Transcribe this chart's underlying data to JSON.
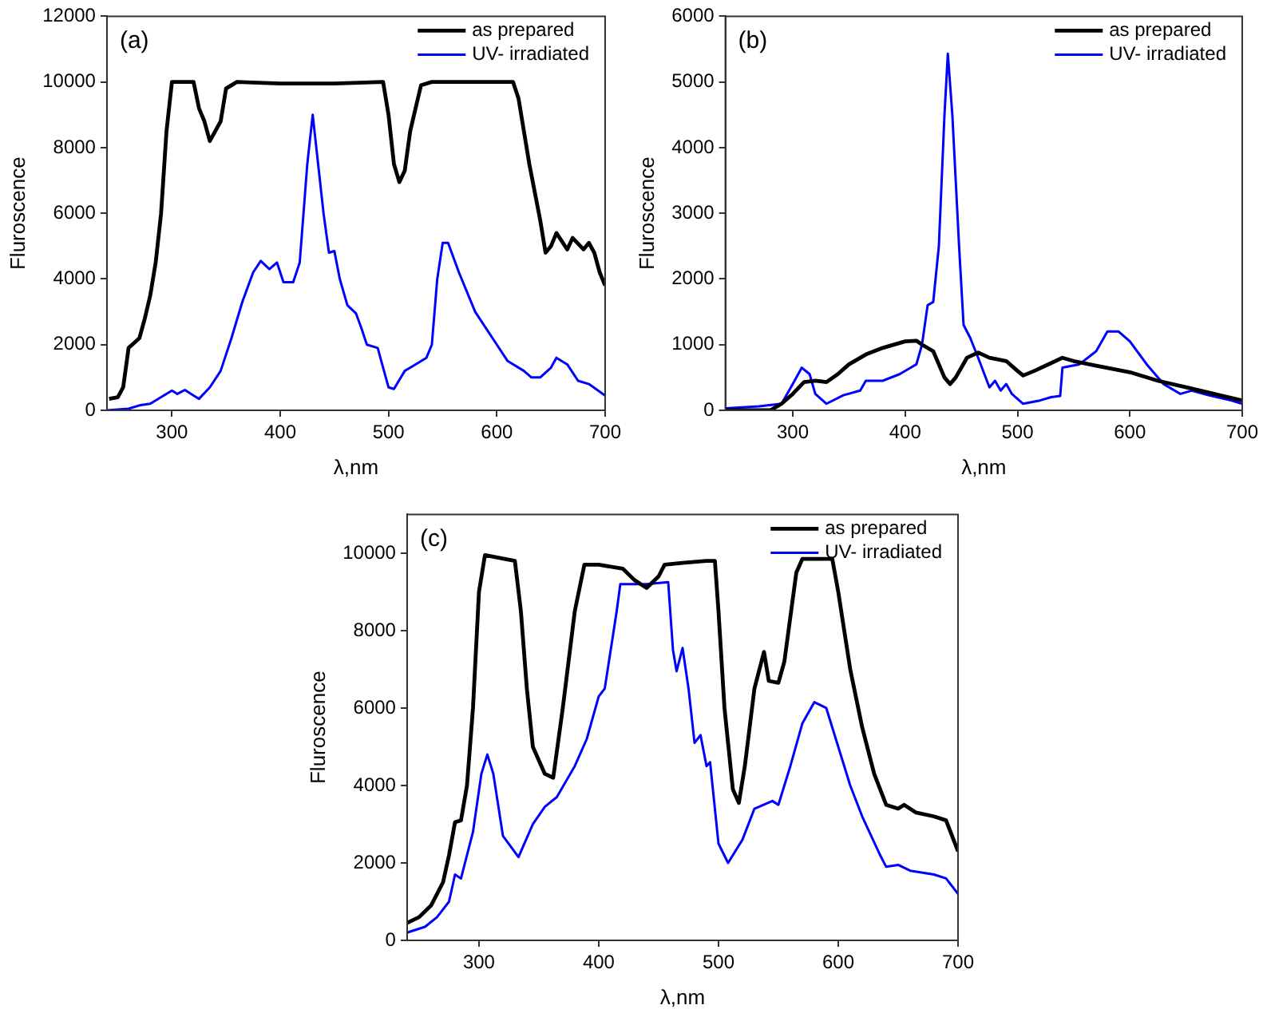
{
  "chart_data": [
    {
      "type": "line",
      "xlabel": "λ,nm",
      "ylabel": "Fluroscence",
      "annotations": [
        "(a)"
      ],
      "xlim": [
        240,
        700
      ],
      "xticks": [
        300,
        400,
        500,
        600,
        700
      ],
      "ylim": [
        0,
        12000
      ],
      "yticks": [
        0,
        2000,
        4000,
        6000,
        8000,
        10000,
        12000
      ],
      "legend": "top right",
      "grid": false,
      "marker": "none",
      "line_style": "solid",
      "series": [
        {
          "name": "as prepared",
          "color": "#000000",
          "x": [
            242,
            250,
            255,
            260,
            265,
            270,
            275,
            280,
            285,
            290,
            295,
            300,
            320,
            325,
            330,
            335,
            340,
            345,
            350,
            360,
            400,
            450,
            495,
            500,
            505,
            510,
            515,
            520,
            525,
            530,
            540,
            600,
            615,
            620,
            625,
            630,
            640,
            645,
            650,
            655,
            665,
            670,
            680,
            685,
            690,
            695,
            700
          ],
          "values": [
            350,
            400,
            700,
            1900,
            2050,
            2200,
            2800,
            3500,
            4500,
            6000,
            8500,
            10000,
            10000,
            9200,
            8800,
            8200,
            8500,
            8800,
            9800,
            10000,
            9950,
            9950,
            10000,
            9000,
            7500,
            6950,
            7300,
            8500,
            9200,
            9900,
            10000,
            10000,
            10000,
            9500,
            8500,
            7500,
            5800,
            4800,
            5000,
            5400,
            4900,
            5250,
            4900,
            5100,
            4800,
            4200,
            3800
          ]
        },
        {
          "name": "UV- irradiated",
          "color": "#0000ff",
          "x": [
            240,
            260,
            270,
            280,
            290,
            300,
            305,
            312,
            320,
            325,
            335,
            345,
            355,
            365,
            375,
            382,
            390,
            397,
            403,
            412,
            418,
            425,
            430,
            435,
            440,
            445,
            450,
            455,
            462,
            470,
            475,
            480,
            490,
            495,
            500,
            505,
            515,
            525,
            535,
            540,
            545,
            550,
            555,
            565,
            580,
            600,
            610,
            625,
            632,
            640,
            650,
            655,
            665,
            675,
            685,
            700
          ],
          "values": [
            0,
            50,
            150,
            200,
            400,
            600,
            500,
            620,
            450,
            350,
            700,
            1200,
            2200,
            3300,
            4200,
            4550,
            4300,
            4500,
            3900,
            3900,
            4500,
            7500,
            9000,
            7500,
            6000,
            4800,
            4850,
            4000,
            3200,
            2950,
            2500,
            2000,
            1900,
            1300,
            700,
            650,
            1200,
            1400,
            1600,
            2000,
            4000,
            5100,
            5100,
            4200,
            3000,
            2000,
            1500,
            1200,
            1000,
            1000,
            1300,
            1600,
            1400,
            900,
            800,
            450
          ]
        }
      ]
    },
    {
      "type": "line",
      "xlabel": "λ,nm",
      "ylabel": "Fluroscence",
      "annotations": [
        "(b)"
      ],
      "xlim": [
        240,
        700
      ],
      "xticks": [
        300,
        400,
        500,
        600,
        700
      ],
      "ylim": [
        0,
        6000
      ],
      "yticks": [
        0,
        1000,
        2000,
        3000,
        4000,
        5000,
        6000
      ],
      "legend": "top right",
      "grid": false,
      "marker": "none",
      "line_style": "solid",
      "series": [
        {
          "name": "as prepared",
          "color": "#000000",
          "x": [
            240,
            280,
            290,
            300,
            310,
            320,
            330,
            340,
            350,
            365,
            380,
            400,
            410,
            415,
            425,
            435,
            440,
            445,
            455,
            465,
            475,
            490,
            500,
            505,
            515,
            530,
            540,
            550,
            570,
            600,
            625,
            650,
            675,
            700
          ],
          "values": [
            0,
            0,
            100,
            250,
            430,
            450,
            430,
            550,
            700,
            850,
            950,
            1050,
            1060,
            1000,
            900,
            500,
            400,
            500,
            800,
            880,
            800,
            750,
            600,
            530,
            600,
            720,
            800,
            750,
            680,
            580,
            450,
            350,
            250,
            150
          ]
        },
        {
          "name": "UV- irradiated",
          "color": "#0000ff",
          "x": [
            240,
            270,
            290,
            300,
            308,
            315,
            320,
            330,
            345,
            360,
            365,
            380,
            395,
            405,
            410,
            415,
            420,
            425,
            430,
            435,
            438,
            442,
            448,
            452,
            458,
            465,
            475,
            480,
            485,
            490,
            495,
            505,
            520,
            530,
            538,
            540,
            555,
            570,
            580,
            590,
            600,
            615,
            630,
            645,
            655,
            670,
            690,
            700
          ],
          "values": [
            30,
            60,
            100,
            400,
            650,
            550,
            250,
            100,
            230,
            300,
            450,
            450,
            550,
            650,
            700,
            1000,
            1600,
            1650,
            2500,
            4500,
            5430,
            4500,
            2500,
            1300,
            1100,
            800,
            350,
            450,
            300,
            400,
            250,
            100,
            150,
            200,
            220,
            650,
            700,
            900,
            1200,
            1200,
            1050,
            700,
            400,
            250,
            300,
            230,
            150,
            100
          ]
        }
      ]
    },
    {
      "type": "line",
      "xlabel": "λ,nm",
      "ylabel": "Fluroscence",
      "annotations": [
        "(c)"
      ],
      "xlim": [
        240,
        700
      ],
      "xticks": [
        300,
        400,
        500,
        600,
        700
      ],
      "ylim": [
        0,
        11000
      ],
      "yticks": [
        0,
        2000,
        4000,
        6000,
        8000,
        10000
      ],
      "legend": "top right",
      "grid": false,
      "marker": "none",
      "line_style": "solid",
      "series": [
        {
          "name": "as prepared",
          "color": "#000000",
          "x": [
            240,
            250,
            260,
            270,
            275,
            280,
            285,
            290,
            295,
            300,
            305,
            330,
            335,
            340,
            345,
            355,
            362,
            370,
            380,
            388,
            400,
            420,
            430,
            440,
            450,
            455,
            470,
            490,
            497,
            500,
            505,
            512,
            517,
            522,
            530,
            538,
            542,
            550,
            555,
            565,
            570,
            595,
            600,
            610,
            620,
            630,
            640,
            650,
            655,
            665,
            680,
            690,
            700
          ],
          "values": [
            450,
            600,
            900,
            1500,
            2200,
            3050,
            3100,
            4000,
            6000,
            9000,
            9950,
            9800,
            8500,
            6500,
            5000,
            4300,
            4200,
            6000,
            8500,
            9700,
            9700,
            9600,
            9300,
            9100,
            9400,
            9700,
            9750,
            9800,
            9800,
            8500,
            6000,
            3900,
            3550,
            4500,
            6500,
            7450,
            6700,
            6650,
            7200,
            9500,
            9850,
            9850,
            9000,
            7000,
            5500,
            4300,
            3500,
            3400,
            3500,
            3300,
            3200,
            3100,
            2300
          ]
        },
        {
          "name": "UV- irradiated",
          "color": "#0000ff",
          "x": [
            240,
            255,
            265,
            275,
            280,
            285,
            295,
            302,
            307,
            312,
            320,
            333,
            345,
            355,
            365,
            380,
            390,
            400,
            405,
            410,
            415,
            418,
            440,
            458,
            462,
            465,
            470,
            475,
            480,
            485,
            490,
            493,
            500,
            508,
            520,
            530,
            545,
            550,
            560,
            570,
            580,
            590,
            600,
            610,
            620,
            635,
            640,
            650,
            660,
            680,
            690,
            700
          ],
          "values": [
            200,
            350,
            600,
            1000,
            1700,
            1600,
            2800,
            4300,
            4800,
            4300,
            2700,
            2150,
            3000,
            3450,
            3700,
            4500,
            5200,
            6300,
            6500,
            7500,
            8500,
            9200,
            9200,
            9250,
            7500,
            6950,
            7550,
            6500,
            5100,
            5300,
            4500,
            4600,
            2500,
            2000,
            2600,
            3400,
            3600,
            3500,
            4500,
            5600,
            6150,
            6000,
            5000,
            4000,
            3200,
            2200,
            1900,
            1950,
            1800,
            1700,
            1600,
            1200
          ]
        }
      ]
    }
  ]
}
